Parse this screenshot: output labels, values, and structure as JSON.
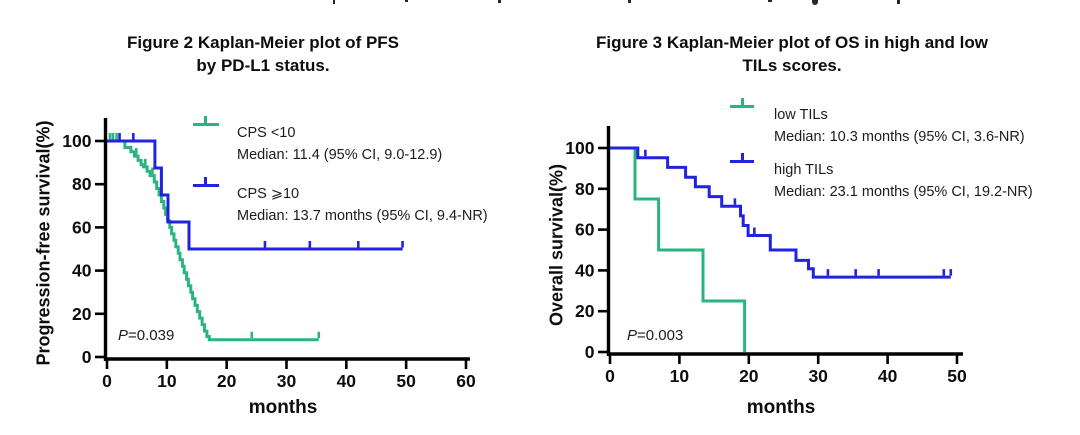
{
  "figure": {
    "background": "#ffffff",
    "axis_color": "#000000",
    "top_cropped_line": "illegible bottom edge of a cropped text line"
  },
  "chart_data": [
    {
      "type": "line",
      "subtype": "kaplan-meier-step",
      "title_lines": [
        "Figure 2 Kaplan-Meier plot of PFS",
        "by PD-L1 status."
      ],
      "xlabel": "months",
      "ylabel": "Progression-free survival(%)",
      "xlim": [
        0,
        60
      ],
      "ylim": [
        0,
        100
      ],
      "xticks": [
        0,
        10,
        20,
        30,
        40,
        50,
        60
      ],
      "yticks": [
        0,
        20,
        40,
        60,
        80,
        100
      ],
      "grid": false,
      "legend_position": "upper right inside",
      "p_label": {
        "prefix": "P",
        "value": "=0.039"
      },
      "series": [
        {
          "name": "CPS <10",
          "median": "Median: 11.4 (95% CI, 9.0-12.9)",
          "color": "#2ab57f",
          "steps": [
            [
              0,
              100
            ],
            [
              3,
              97
            ],
            [
              4,
              95
            ],
            [
              4.6,
              93
            ],
            [
              5.2,
              91
            ],
            [
              5.7,
              89
            ],
            [
              6.1,
              88
            ],
            [
              6.7,
              86
            ],
            [
              7.2,
              84
            ],
            [
              7.9,
              81
            ],
            [
              8.3,
              78
            ],
            [
              8.7,
              75
            ],
            [
              9.1,
              72
            ],
            [
              9.5,
              69
            ],
            [
              9.8,
              66
            ],
            [
              10.1,
              63
            ],
            [
              10.5,
              60
            ],
            [
              10.8,
              57
            ],
            [
              11.2,
              54
            ],
            [
              11.5,
              51
            ],
            [
              11.9,
              48
            ],
            [
              12.2,
              45
            ],
            [
              12.6,
              42
            ],
            [
              12.9,
              39
            ],
            [
              13.3,
              36
            ],
            [
              13.6,
              33
            ],
            [
              14,
              30
            ],
            [
              14.3,
              27
            ],
            [
              14.7,
              24
            ],
            [
              15.1,
              21
            ],
            [
              15.5,
              18
            ],
            [
              15.9,
              15
            ],
            [
              16.3,
              12
            ],
            [
              16.7,
              9.5
            ],
            [
              17.1,
              8
            ]
          ],
          "end_x": 35.4,
          "censors": [
            [
              0.5,
              100
            ],
            [
              1,
              100
            ],
            [
              1.6,
              100
            ],
            [
              4.9,
              93
            ],
            [
              6.4,
              88
            ],
            [
              7.6,
              84
            ],
            [
              24.2,
              8
            ],
            [
              35.4,
              8
            ]
          ]
        },
        {
          "name": "CPS ⩾10",
          "median": "Median: 13.7 months (95% CI, 9.4-NR)",
          "color": "#2222e2",
          "steps": [
            [
              0,
              100
            ],
            [
              8,
              87.5
            ],
            [
              9.1,
              75
            ],
            [
              10.2,
              62.5
            ],
            [
              13.7,
              50
            ]
          ],
          "end_x": 49.4,
          "censors": [
            [
              2.1,
              100
            ],
            [
              4.4,
              100
            ],
            [
              26.4,
              50
            ],
            [
              33.9,
              50
            ],
            [
              42,
              50
            ],
            [
              49.4,
              50
            ]
          ]
        }
      ]
    },
    {
      "type": "line",
      "subtype": "kaplan-meier-step",
      "title_lines": [
        "Figure 3 Kaplan-Meier plot of OS in high and low",
        "TILs scores."
      ],
      "xlabel": "months",
      "ylabel": "Overall survival(%)",
      "xlim": [
        0,
        51
      ],
      "ylim": [
        0,
        100
      ],
      "xticks": [
        0,
        10,
        20,
        30,
        40,
        50
      ],
      "yticks": [
        0,
        20,
        40,
        60,
        80,
        100
      ],
      "grid": false,
      "legend_position": "upper right inside",
      "p_label": {
        "prefix": "P",
        "value": "=0.003"
      },
      "series": [
        {
          "name": "low TILs",
          "median": "Median: 10.3 months (95% CI, 3.6-NR)",
          "color": "#2ab57f",
          "steps": [
            [
              0,
              100
            ],
            [
              3.6,
              75
            ],
            [
              7,
              50
            ],
            [
              13.4,
              25
            ],
            [
              19.4,
              0
            ]
          ],
          "end_x": 19.4,
          "censors": []
        },
        {
          "name": "high TILs",
          "median": "Median: 23.1 months (95% CI, 19.2-NR)",
          "color": "#2222e2",
          "steps": [
            [
              0,
              100
            ],
            [
              4,
              95.2
            ],
            [
              8.3,
              90.5
            ],
            [
              10.9,
              85.7
            ],
            [
              12.3,
              81
            ],
            [
              14.3,
              76.2
            ],
            [
              16.1,
              71.4
            ],
            [
              18.8,
              66.7
            ],
            [
              19.2,
              62
            ],
            [
              19.9,
              57.1
            ],
            [
              23.1,
              50
            ],
            [
              26.8,
              44.9
            ],
            [
              28.6,
              40.8
            ],
            [
              29.3,
              36.7
            ]
          ],
          "end_x": 49.1,
          "censors": [
            [
              5.1,
              95.2
            ],
            [
              18,
              71.4
            ],
            [
              20.8,
              57.1
            ],
            [
              31.4,
              36.7
            ],
            [
              35.4,
              36.7
            ],
            [
              38.7,
              36.7
            ],
            [
              48.1,
              36.7
            ],
            [
              49.1,
              36.7
            ]
          ]
        }
      ]
    }
  ]
}
